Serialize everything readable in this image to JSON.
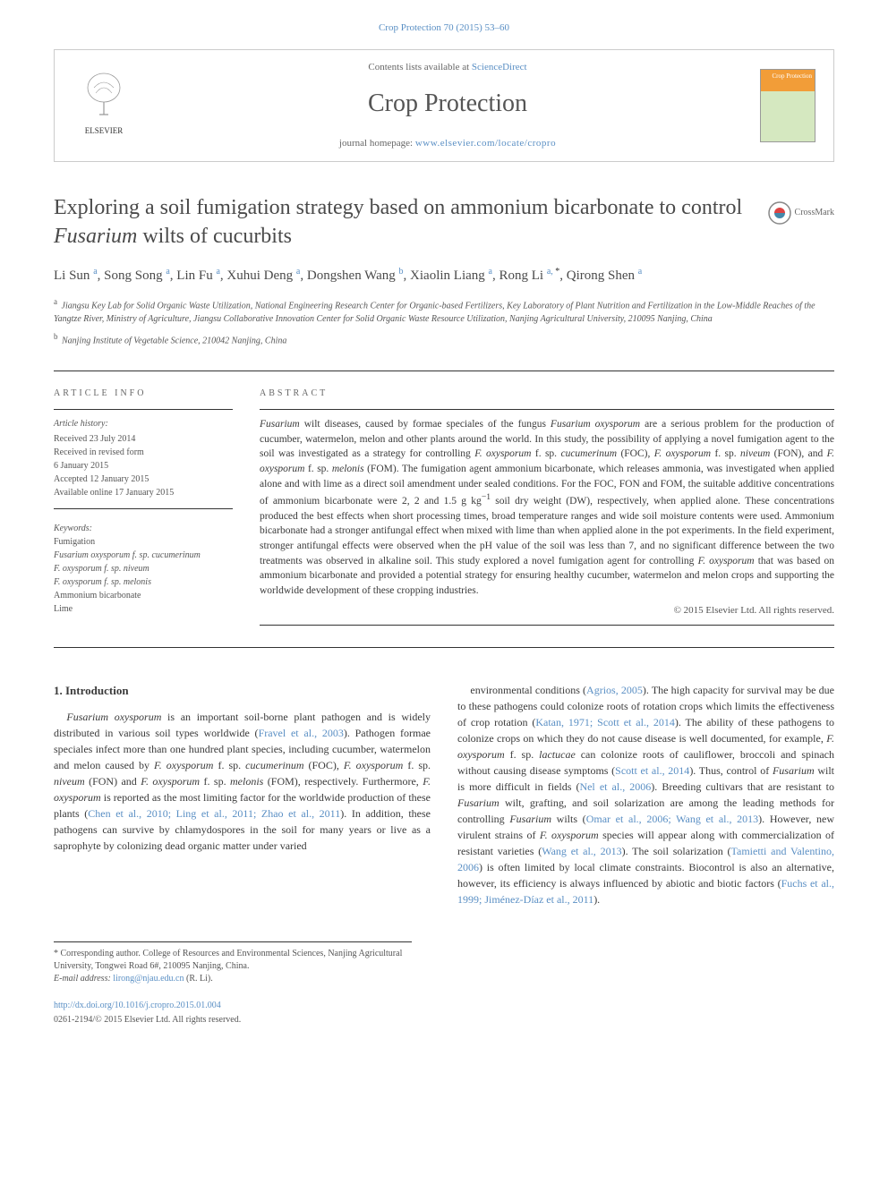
{
  "header": {
    "citation": "Crop Protection 70 (2015) 53–60",
    "contents_label": "Contents lists available at",
    "contents_link": "ScienceDirect",
    "journal_name": "Crop Protection",
    "homepage_label": "journal homepage:",
    "homepage_url": "www.elsevier.com/locate/cropro",
    "elsevier_label": "ELSEVIER",
    "cover_text": "Crop Protection"
  },
  "article": {
    "title_pre": "Exploring a soil fumigation strategy based on ammonium bicarbonate to control ",
    "title_italic": "Fusarium",
    "title_post": " wilts of cucurbits",
    "crossmark": "CrossMark",
    "authors_html": "Li Sun <sup>a</sup>, Song Song <sup>a</sup>, Lin Fu <sup>a</sup>, Xuhui Deng <sup>a</sup>, Dongshen Wang <sup>b</sup>, Xiaolin Liang <sup>a</sup>, Rong Li <sup>a, <span class='ast'>*</span></sup>, Qirong Shen <sup>a</sup>",
    "affil_a": "Jiangsu Key Lab for Solid Organic Waste Utilization, National Engineering Research Center for Organic-based Fertilizers, Key Laboratory of Plant Nutrition and Fertilization in the Low-Middle Reaches of the Yangtze River, Ministry of Agriculture, Jiangsu Collaborative Innovation Center for Solid Organic Waste Resource Utilization, Nanjing Agricultural University, 210095 Nanjing, China",
    "affil_b": "Nanjing Institute of Vegetable Science, 210042 Nanjing, China"
  },
  "info": {
    "heading_info": "ARTICLE INFO",
    "history_label": "Article history:",
    "received": "Received 23 July 2014",
    "revised1": "Received in revised form",
    "revised2": "6 January 2015",
    "accepted": "Accepted 12 January 2015",
    "online": "Available online 17 January 2015",
    "keywords_label": "Keywords:",
    "kw1": "Fumigation",
    "kw2": "Fusarium oxysporum f. sp. cucumerinum",
    "kw3": "F. oxysporum f. sp. niveum",
    "kw4": "F. oxysporum f. sp. melonis",
    "kw5": "Ammonium bicarbonate",
    "kw6": "Lime"
  },
  "abstract": {
    "heading": "ABSTRACT",
    "text": "<span class='italic'>Fusarium</span> wilt diseases, caused by formae speciales of the fungus <span class='italic'>Fusarium oxysporum</span> are a serious problem for the production of cucumber, watermelon, melon and other plants around the world. In this study, the possibility of applying a novel fumigation agent to the soil was investigated as a strategy for controlling <span class='italic'>F. oxysporum</span> f. sp. <span class='italic'>cucumerinum</span> (FOC), <span class='italic'>F. oxysporum</span> f. sp. <span class='italic'>niveum</span> (FON), and <span class='italic'>F. oxysporum</span> f. sp. <span class='italic'>melonis</span> (FOM). The fumigation agent ammonium bicarbonate, which releases ammonia, was investigated when applied alone and with lime as a direct soil amendment under sealed conditions. For the FOC, FON and FOM, the suitable additive concentrations of ammonium bicarbonate were 2, 2 and 1.5 g kg<sup>−1</sup> soil dry weight (DW), respectively, when applied alone. These concentrations produced the best effects when short processing times, broad temperature ranges and wide soil moisture contents were used. Ammonium bicarbonate had a stronger antifungal effect when mixed with lime than when applied alone in the pot experiments. In the field experiment, stronger antifungal effects were observed when the pH value of the soil was less than 7, and no significant difference between the two treatments was observed in alkaline soil. This study explored a novel fumigation agent for controlling <span class='italic'>F. oxysporum</span> that was based on ammonium bicarbonate and provided a potential strategy for ensuring healthy cucumber, watermelon and melon crops and supporting the worldwide development of these cropping industries.",
    "copyright": "© 2015 Elsevier Ltd. All rights reserved."
  },
  "body": {
    "section_heading": "1. Introduction",
    "col1": "<span class='italic'>Fusarium oxysporum</span> is an important soil-borne plant pathogen and is widely distributed in various soil types worldwide (<span class='cite'>Fravel et al., 2003</span>). Pathogen formae speciales infect more than one hundred plant species, including cucumber, watermelon and melon caused by <span class='italic'>F. oxysporum</span> f. sp. <span class='italic'>cucumerinum</span> (FOC), <span class='italic'>F. oxysporum</span> f. sp. <span class='italic'>niveum</span> (FON) and <span class='italic'>F. oxysporum</span> f. sp. <span class='italic'>melonis</span> (FOM), respectively. Furthermore, <span class='italic'>F. oxysporum</span> is reported as the most limiting factor for the worldwide production of these plants (<span class='cite'>Chen et al., 2010; Ling et al., 2011; Zhao et al., 2011</span>). In addition, these pathogens can survive by chlamydospores in the soil for many years or live as a saprophyte by colonizing dead organic matter under varied",
    "col2": "environmental conditions (<span class='cite'>Agrios, 2005</span>). The high capacity for survival may be due to these pathogens could colonize roots of rotation crops which limits the effectiveness of crop rotation (<span class='cite'>Katan, 1971; Scott et al., 2014</span>). The ability of these pathogens to colonize crops on which they do not cause disease is well documented, for example, <span class='italic'>F. oxysporum</span> f. sp. <span class='italic'>lactucae</span> can colonize roots of cauliflower, broccoli and spinach without causing disease symptoms (<span class='cite'>Scott et al., 2014</span>). Thus, control of <span class='italic'>Fusarium</span> wilt is more difficult in fields (<span class='cite'>Nel et al., 2006</span>). Breeding cultivars that are resistant to <span class='italic'>Fusarium</span> wilt, grafting, and soil solarization are among the leading methods for controlling <span class='italic'>Fusarium</span> wilts (<span class='cite'>Omar et al., 2006; Wang et al., 2013</span>). However, new virulent strains of <span class='italic'>F. oxysporum</span> species will appear along with commercialization of resistant varieties (<span class='cite'>Wang et al., 2013</span>). The soil solarization (<span class='cite'>Tamietti and Valentino, 2006</span>) is often limited by local climate constraints. Biocontrol is also an alternative, however, its efficiency is always influenced by abiotic and biotic factors (<span class='cite'>Fuchs et al., 1999; Jiménez-Díaz et al., 2011</span>)."
  },
  "footnote": {
    "corr": "* Corresponding author. College of Resources and Environmental Sciences, Nanjing Agricultural University, Tongwei Road 6#, 210095 Nanjing, China.",
    "email_label": "E-mail address:",
    "email": "lirong@njau.edu.cn",
    "email_name": "(R. Li)."
  },
  "footer": {
    "doi": "http://dx.doi.org/10.1016/j.cropro.2015.01.004",
    "issn": "0261-2194/© 2015 Elsevier Ltd. All rights reserved."
  },
  "colors": {
    "link": "#5a8fc4",
    "text": "#3a3a3a",
    "cover_top": "#f29d38",
    "cover_bottom": "#d5e8c0"
  }
}
